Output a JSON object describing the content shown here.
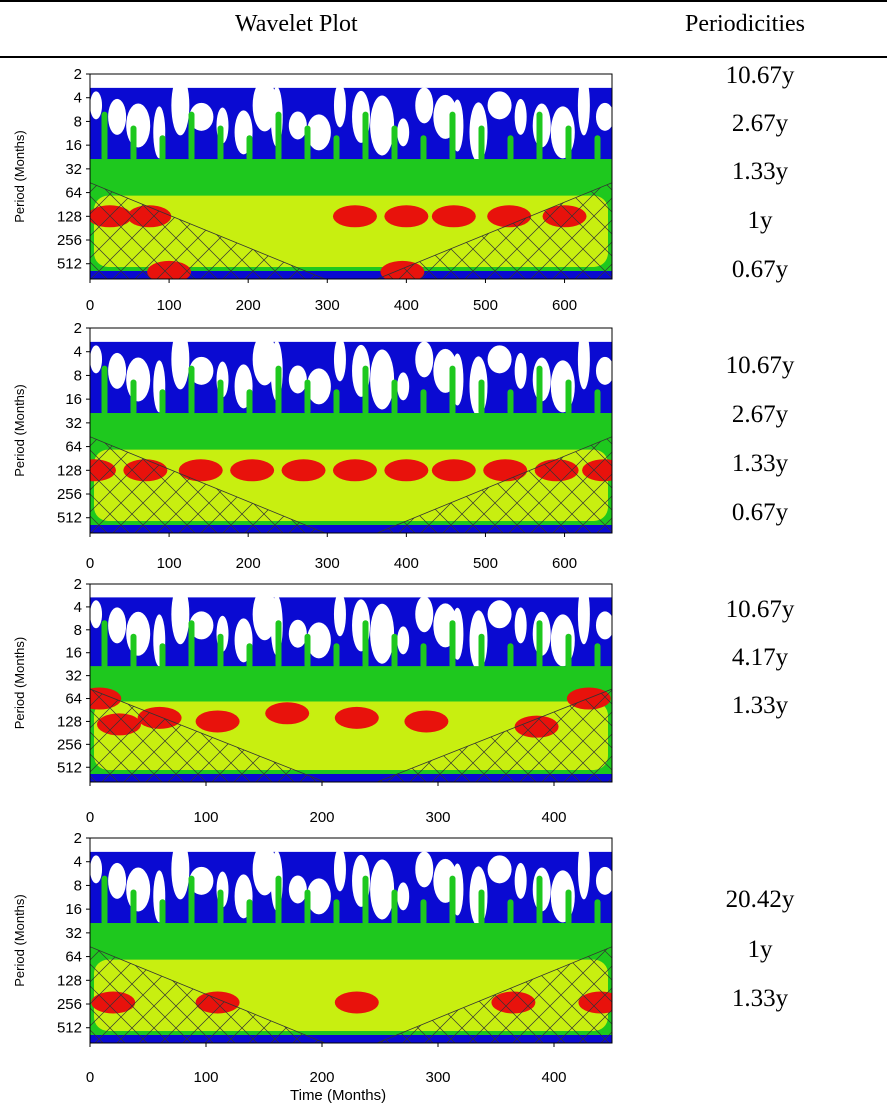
{
  "table": {
    "col_wavelet": "Wavelet Plot",
    "col_periodicities": "Periodicities"
  },
  "periodicities": [
    [
      "10.67y",
      "2.67y",
      "1.33y",
      "1y",
      "0.67y"
    ],
    [
      "10.67y",
      "2.67y",
      "1.33y",
      "0.67y"
    ],
    [
      "10.67y",
      "4.17y",
      "1.33y"
    ],
    [
      "20.42y",
      "1y",
      "1.33y"
    ]
  ],
  "colors": {
    "strongest": "#e8120c",
    "strong": "#c8ef10",
    "medium": "#1ec81e",
    "weak": "#0a0ad2",
    "background": "#ffffff"
  },
  "chart_data": [
    {
      "type": "heatmap",
      "ylabel": "Period (Months)",
      "xlabel": "",
      "yticks": [
        "2",
        "4",
        "8",
        "16",
        "32",
        "64",
        "128",
        "256",
        "512"
      ],
      "xticks": [
        "0",
        "100",
        "200",
        "300",
        "400",
        "500",
        "600"
      ],
      "xlim": [
        0,
        660
      ],
      "ylim": [
        2,
        800
      ],
      "y_scale": "log",
      "cone_of_influence": true,
      "peaks": [
        {
          "x": 25,
          "period": 128
        },
        {
          "x": 75,
          "period": 128
        },
        {
          "x": 335,
          "period": 128
        },
        {
          "x": 400,
          "period": 128
        },
        {
          "x": 460,
          "period": 128
        },
        {
          "x": 530,
          "period": 128
        },
        {
          "x": 600,
          "period": 128
        },
        {
          "x": 100,
          "period": 650
        },
        {
          "x": 395,
          "period": 650
        }
      ]
    },
    {
      "type": "heatmap",
      "ylabel": "Period (Months)",
      "xlabel": "",
      "yticks": [
        "2",
        "4",
        "8",
        "16",
        "32",
        "64",
        "128",
        "256",
        "512"
      ],
      "xticks": [
        "0",
        "100",
        "200",
        "300",
        "400",
        "500",
        "600"
      ],
      "xlim": [
        0,
        660
      ],
      "ylim": [
        2,
        800
      ],
      "y_scale": "log",
      "cone_of_influence": true,
      "peaks": [
        {
          "x": 5,
          "period": 128
        },
        {
          "x": 70,
          "period": 128
        },
        {
          "x": 140,
          "period": 128
        },
        {
          "x": 205,
          "period": 128
        },
        {
          "x": 270,
          "period": 128
        },
        {
          "x": 335,
          "period": 128
        },
        {
          "x": 400,
          "period": 128
        },
        {
          "x": 460,
          "period": 128
        },
        {
          "x": 525,
          "period": 128
        },
        {
          "x": 590,
          "period": 128
        },
        {
          "x": 650,
          "period": 128
        }
      ]
    },
    {
      "type": "heatmap",
      "ylabel": "Period (Months)",
      "xlabel": "",
      "yticks": [
        "2",
        "4",
        "8",
        "16",
        "32",
        "64",
        "128",
        "256",
        "512"
      ],
      "xticks": [
        "0",
        "100",
        "200",
        "300",
        "400"
      ],
      "xlim": [
        0,
        450
      ],
      "ylim": [
        2,
        800
      ],
      "y_scale": "log",
      "cone_of_influence": true,
      "peaks": [
        {
          "x": 8,
          "period": 64
        },
        {
          "x": 25,
          "period": 140
        },
        {
          "x": 60,
          "period": 115
        },
        {
          "x": 110,
          "period": 128
        },
        {
          "x": 170,
          "period": 100
        },
        {
          "x": 230,
          "period": 115
        },
        {
          "x": 290,
          "period": 128
        },
        {
          "x": 385,
          "period": 150
        },
        {
          "x": 430,
          "period": 64
        }
      ]
    },
    {
      "type": "heatmap",
      "ylabel": "Period (Months)",
      "xlabel": "Time (Months)",
      "yticks": [
        "2",
        "4",
        "8",
        "16",
        "32",
        "64",
        "128",
        "256",
        "512"
      ],
      "xticks": [
        "0",
        "100",
        "200",
        "300",
        "400"
      ],
      "xlim": [
        0,
        450
      ],
      "ylim": [
        2,
        800
      ],
      "y_scale": "log",
      "cone_of_influence": true,
      "peaks": [
        {
          "x": 20,
          "period": 245
        },
        {
          "x": 110,
          "period": 245
        },
        {
          "x": 230,
          "period": 245
        },
        {
          "x": 365,
          "period": 245
        },
        {
          "x": 440,
          "period": 245
        }
      ]
    }
  ]
}
